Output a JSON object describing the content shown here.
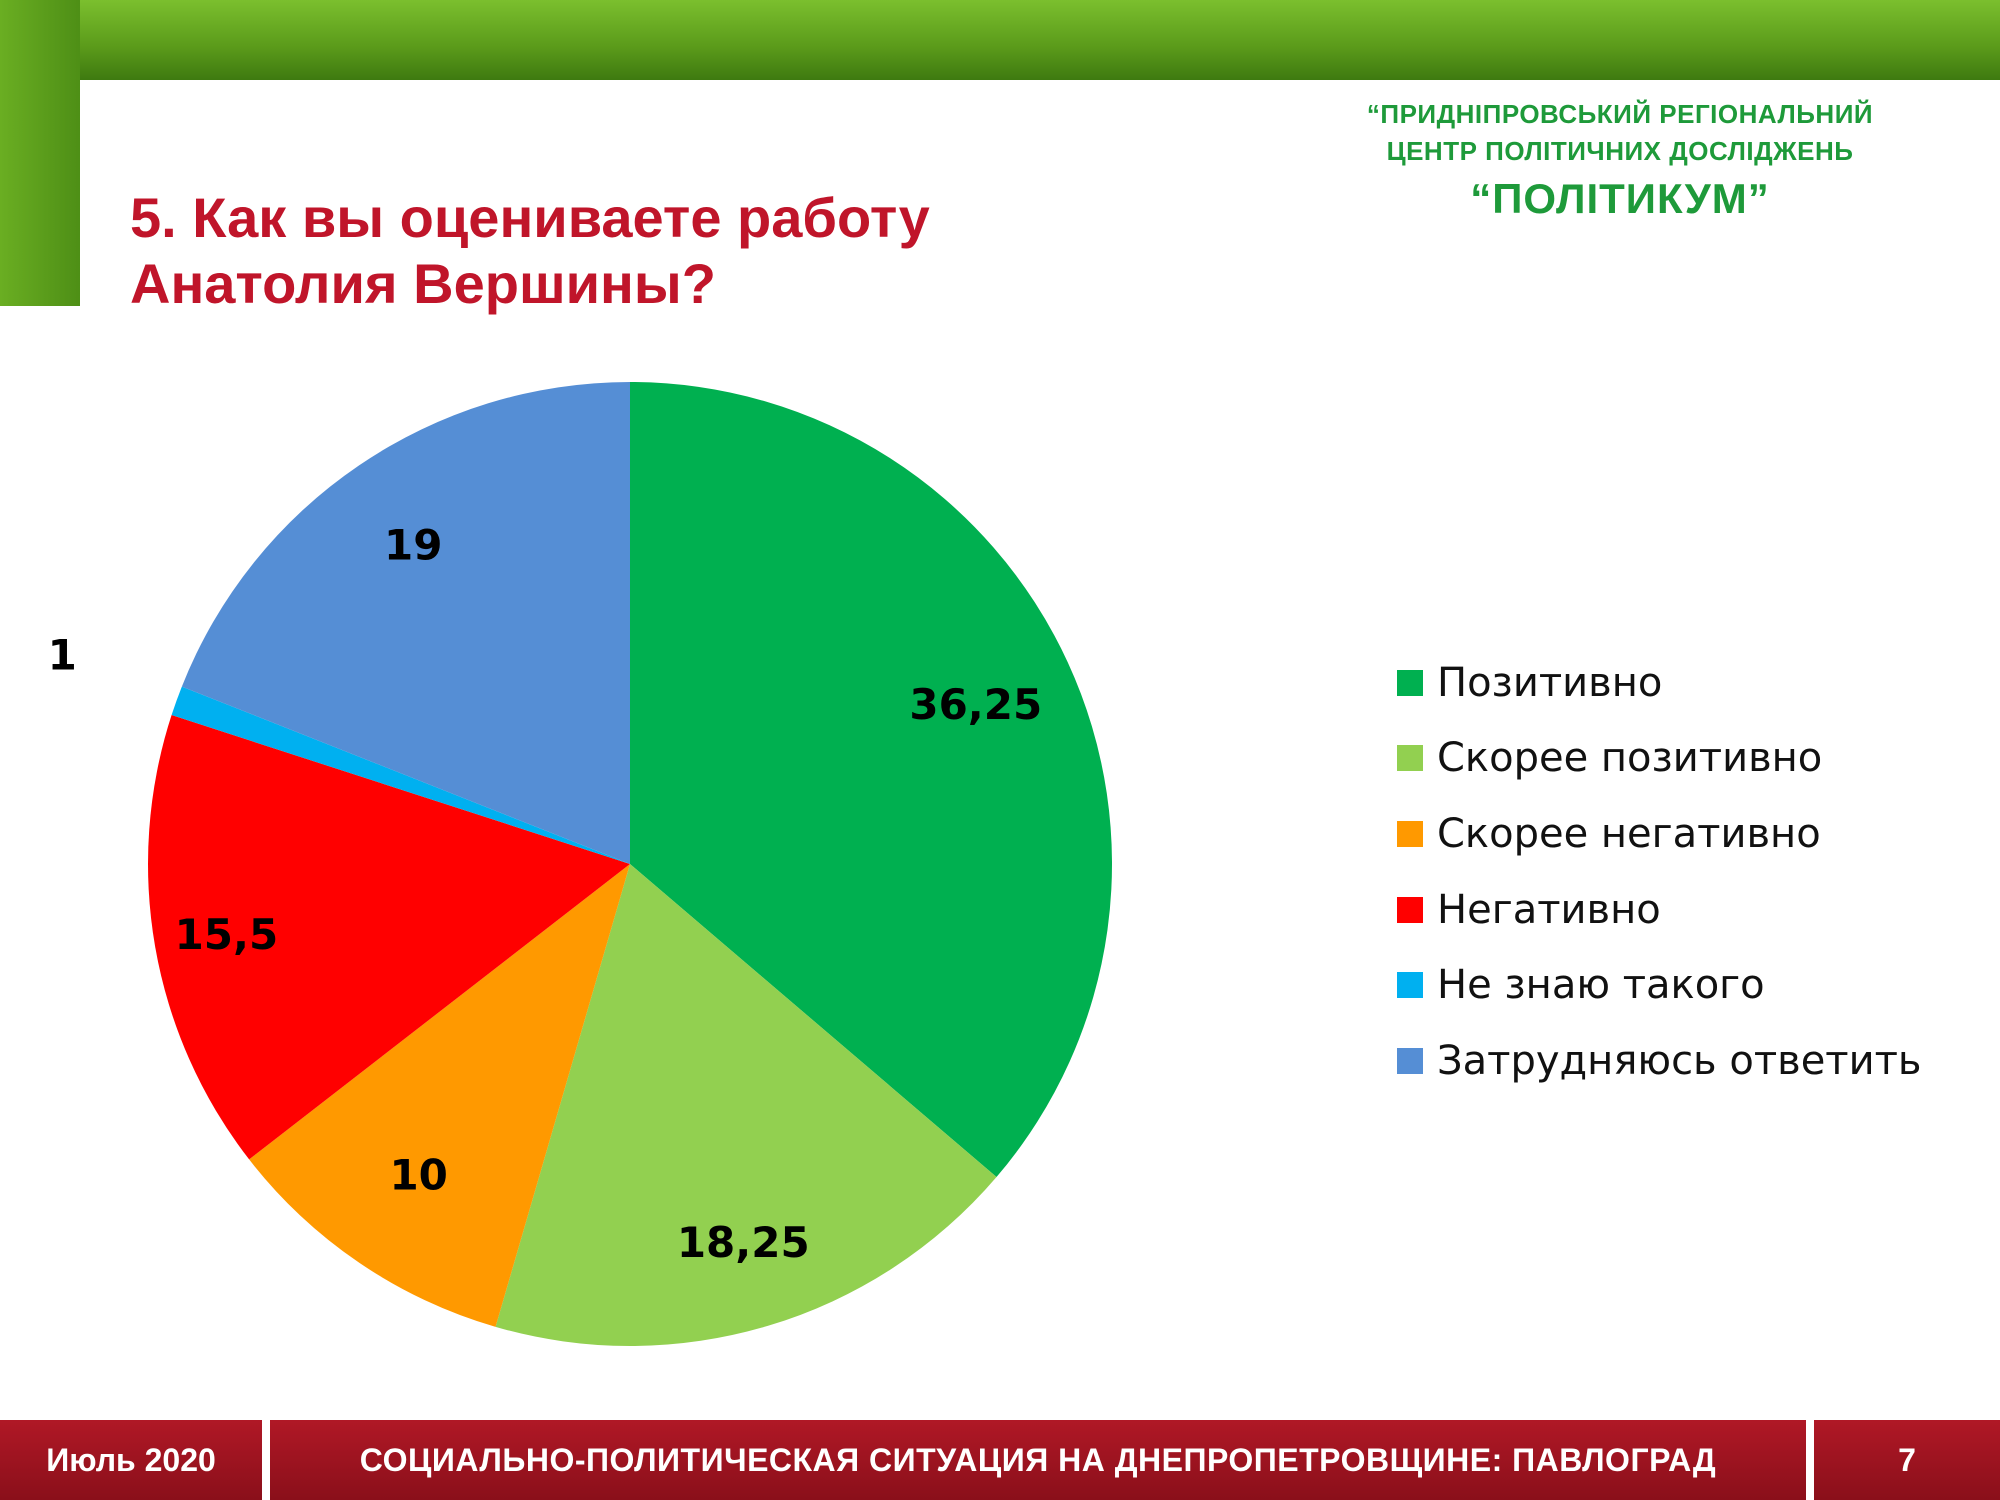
{
  "header": {
    "org_line1": "“ПРИДНІПРОВСЬКИЙ РЕГІОНАЛЬНИЙ",
    "org_line2": "ЦЕНТР ПОЛІТИЧНИХ ДОСЛІДЖЕНЬ",
    "org_line3": "“ПОЛІТИКУМ”"
  },
  "slide_title": {
    "line1": "5. Как вы оцениваете работу",
    "line2": "Анатолия Вершины?"
  },
  "chart_data": {
    "type": "pie",
    "title": "5. Как вы оцениваете работу Анатолия Вершины?",
    "categories": [
      "Позитивно",
      "Скорее позитивно",
      "Скорее негативно",
      "Негативно",
      "Не знаю такого",
      "Затрудняюсь ответить"
    ],
    "values": [
      36.25,
      18.25,
      10,
      15.5,
      1,
      19
    ],
    "value_labels": [
      "36,25",
      "18,25",
      "10",
      "15,5",
      "1",
      "19"
    ],
    "colors": [
      "#00b050",
      "#92d050",
      "#ff9900",
      "#ff0000",
      "#00b0f0",
      "#558ed5"
    ],
    "start": "12 o'clock",
    "direction": "clockwise",
    "legend_position": "right"
  },
  "footer": {
    "date": "Июль 2020",
    "title": "СОЦИАЛЬНО-ПОЛИТИЧЕСКАЯ СИТУАЦИЯ НА ДНЕПРОПЕТРОВЩИНЕ: ПАВЛОГРАД",
    "page": "7"
  }
}
